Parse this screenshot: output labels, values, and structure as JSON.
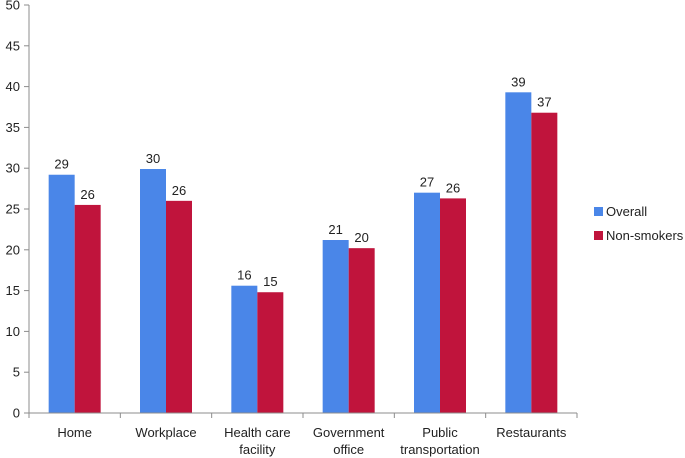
{
  "chart_data": {
    "type": "bar",
    "categories": [
      [
        "Home"
      ],
      [
        "Workplace"
      ],
      [
        "Health care",
        "facility"
      ],
      [
        "Government",
        "office"
      ],
      [
        "Public",
        "transportation"
      ],
      [
        "Restaurants"
      ]
    ],
    "series": [
      {
        "name": "Overall",
        "color": "#4a86e8",
        "values": [
          29.2,
          29.9,
          15.6,
          21.2,
          27.0,
          39.3
        ],
        "labels": [
          "29",
          "30",
          "16",
          "21",
          "27",
          "39"
        ]
      },
      {
        "name": "Non-smokers",
        "color": "#c0143c",
        "values": [
          25.5,
          26.0,
          14.8,
          20.2,
          26.3,
          36.8
        ],
        "labels": [
          "26",
          "26",
          "15",
          "20",
          "26",
          "37"
        ]
      }
    ],
    "ylim": [
      0,
      50
    ],
    "yticks": [
      0,
      5,
      10,
      15,
      20,
      25,
      30,
      35,
      40,
      45,
      50
    ],
    "grid": false,
    "legend_position": "right"
  }
}
